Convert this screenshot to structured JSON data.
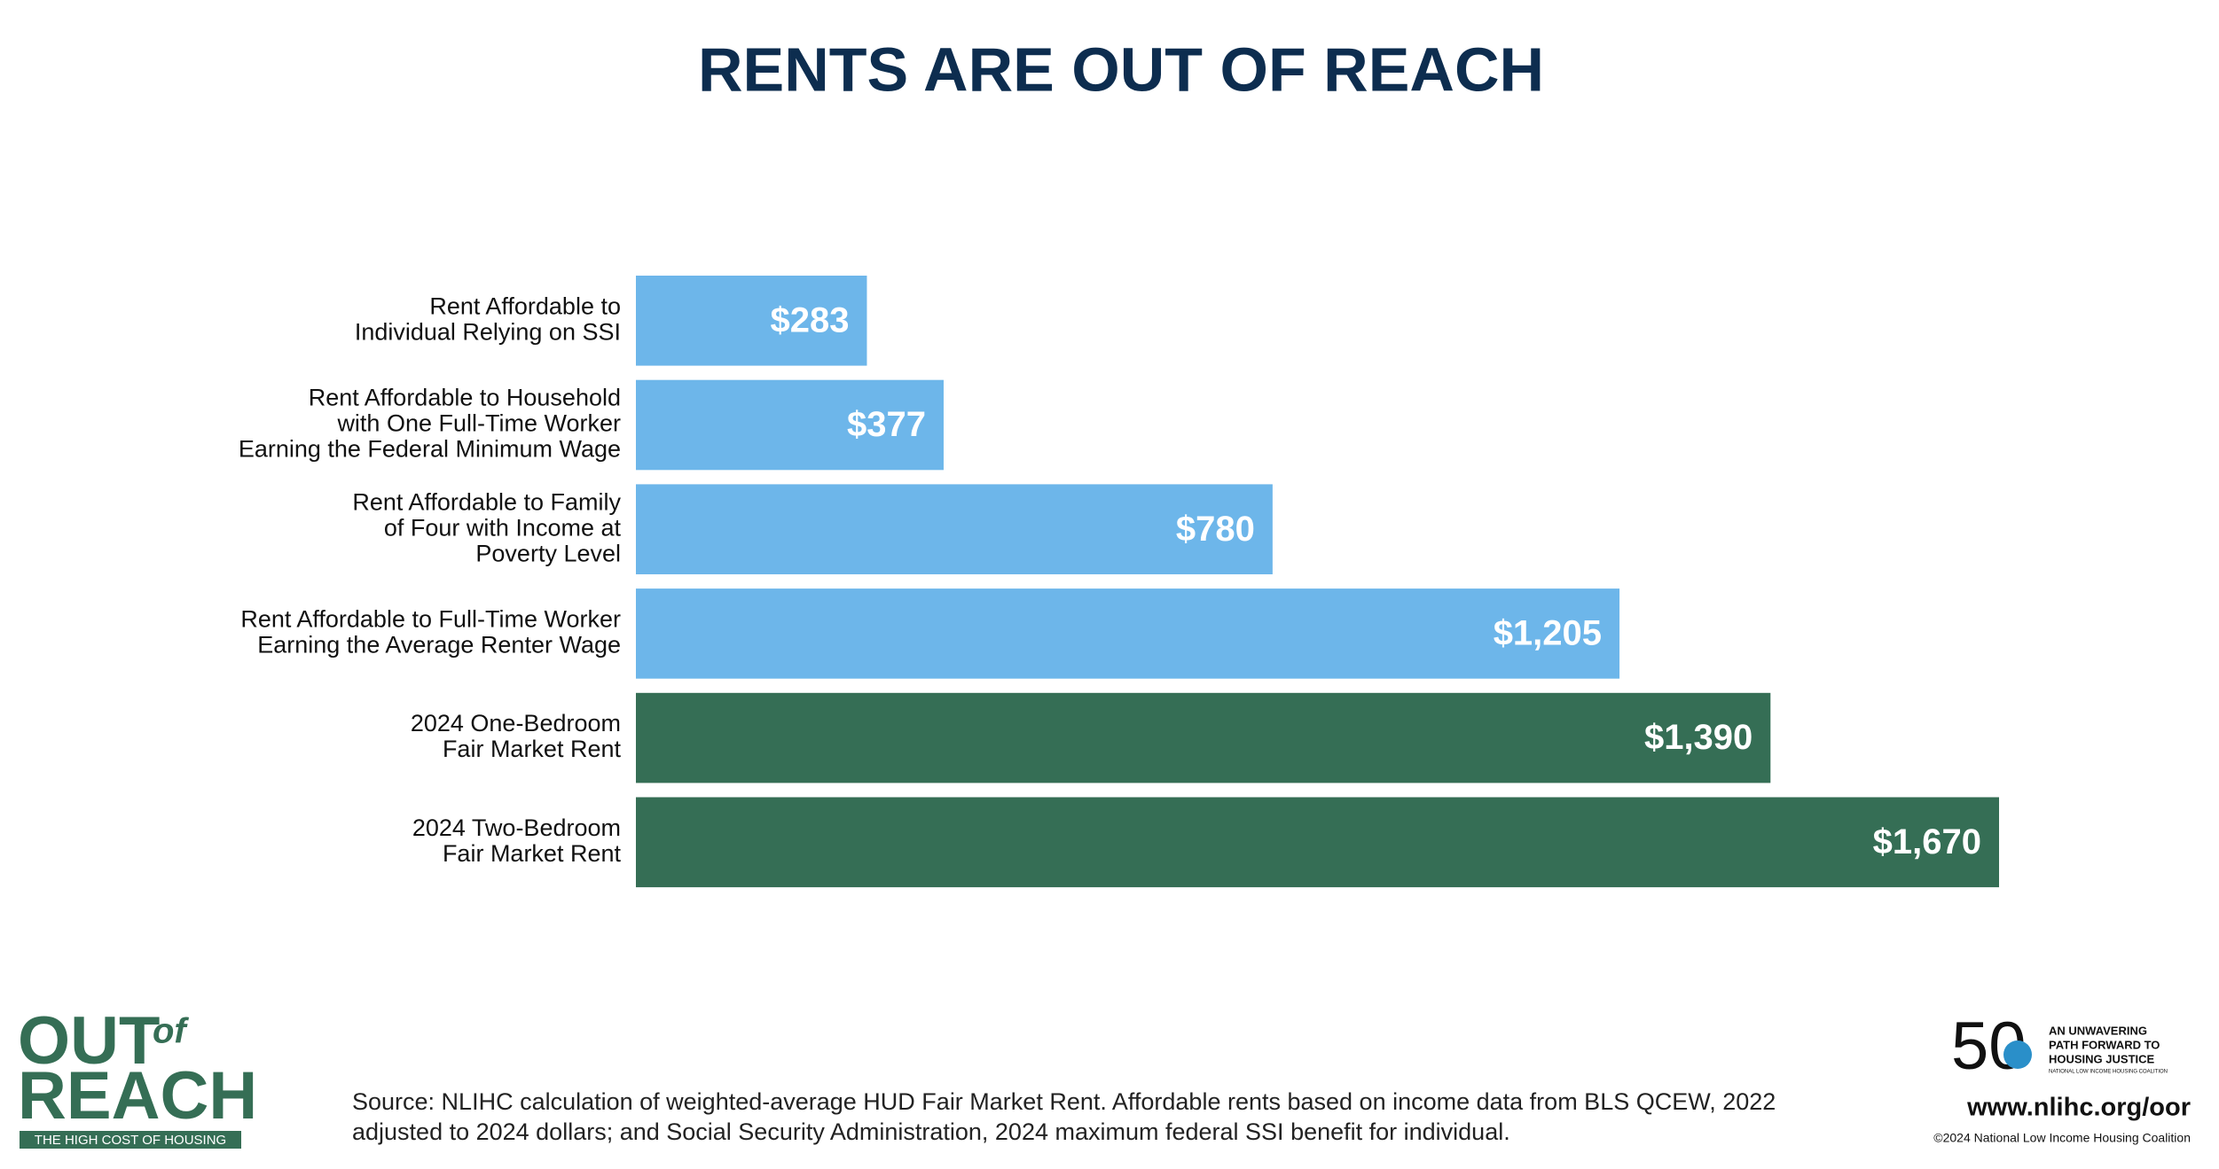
{
  "chart_data": {
    "type": "bar",
    "orientation": "horizontal",
    "title": "RENTS ARE OUT OF REACH",
    "categories": [
      [
        "Rent Affordable to",
        "Individual Relying on SSI"
      ],
      [
        "Rent Affordable to Household",
        "with One Full-Time Worker",
        "Earning the Federal Minimum Wage"
      ],
      [
        "Rent Affordable to Family",
        "of Four with Income at",
        "Poverty Level"
      ],
      [
        "Rent Affordable to Full-Time Worker",
        "Earning the Average Renter Wage"
      ],
      [
        "2024 One-Bedroom",
        "Fair Market Rent"
      ],
      [
        "2024 Two-Bedroom",
        "Fair Market Rent"
      ]
    ],
    "values": [
      283,
      377,
      780,
      1205,
      1390,
      1670
    ],
    "value_labels": [
      "$283",
      "$377",
      "$780",
      "$1,205",
      "$1,390",
      "$1,670"
    ],
    "colors": [
      "#6db6ea",
      "#6db6ea",
      "#6db6ea",
      "#6db6ea",
      "#356e55",
      "#356e55"
    ]
  },
  "footer": {
    "source": [
      "Source: NLIHC calculation of weighted-average HUD Fair Market Rent. Affordable rents based on income data from BLS QCEW, 2022",
      "adjusted to 2024 dollars; and Social Security Administration, 2024 maximum federal SSI benefit for individual."
    ],
    "logo_left": {
      "line1": "OUT",
      "of": "of",
      "line2": "REACH",
      "tagline": "THE HIGH COST OF HOUSING"
    },
    "logo_right": {
      "number": "50",
      "tagline": [
        "AN UNWAVERING",
        "PATH FORWARD TO",
        "HOUSING JUSTICE"
      ],
      "org": "NATIONAL LOW INCOME HOUSING COALITION",
      "url": "www.nlihc.org/oor",
      "copyright": "©2024 National Low Income Housing Coalition"
    }
  }
}
